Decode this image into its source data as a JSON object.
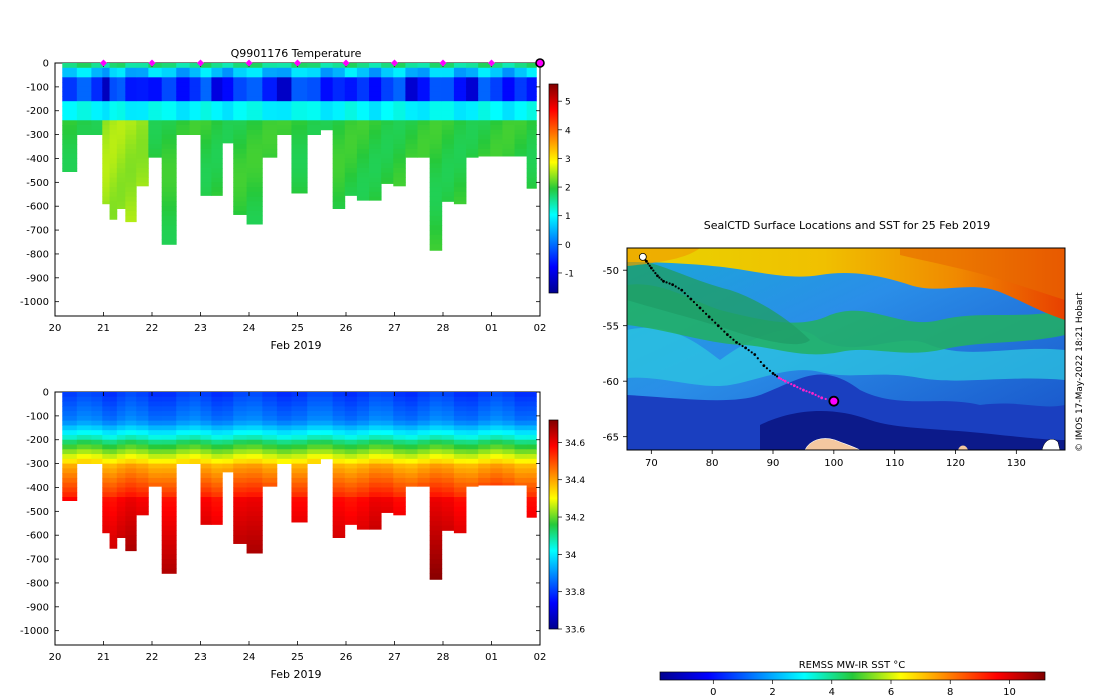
{
  "chart_data": [
    {
      "id": "temperature",
      "type": "heatmap",
      "title": "Q9901176  Temperature",
      "xlabel": "Feb 2019",
      "ylabel": "",
      "x_tick_labels": [
        "20",
        "21",
        "22",
        "23",
        "24",
        "25",
        "26",
        "27",
        "28",
        "01",
        "02"
      ],
      "xlim_days": [
        0,
        10
      ],
      "y_ticks": [
        0,
        -100,
        -200,
        -300,
        -400,
        -500,
        -600,
        -700,
        -800,
        -900,
        -1000
      ],
      "ylim": [
        -1060,
        0
      ],
      "colorbar": {
        "ticks": [
          5,
          4,
          3,
          2,
          1,
          0,
          -1
        ],
        "range": [
          -1.7,
          5.6
        ]
      },
      "profile_markers_days": [
        1,
        2,
        3,
        4,
        5,
        6,
        7,
        8,
        9
      ],
      "current_position_marker_day": 10,
      "profiles": [
        {
          "day": 0.3,
          "max_depth": 455
        },
        {
          "day": 0.6,
          "max_depth": 300
        },
        {
          "day": 0.9,
          "max_depth": 300
        },
        {
          "day": 1.05,
          "max_depth": 590
        },
        {
          "day": 1.2,
          "max_depth": 655
        },
        {
          "day": 1.35,
          "max_depth": 610
        },
        {
          "day": 1.55,
          "max_depth": 665
        },
        {
          "day": 1.8,
          "max_depth": 515
        },
        {
          "day": 2.05,
          "max_depth": 395
        },
        {
          "day": 2.35,
          "max_depth": 760
        },
        {
          "day": 2.65,
          "max_depth": 300
        },
        {
          "day": 2.9,
          "max_depth": 300
        },
        {
          "day": 3.1,
          "max_depth": 555
        },
        {
          "day": 3.35,
          "max_depth": 555
        },
        {
          "day": 3.55,
          "max_depth": 335
        },
        {
          "day": 3.8,
          "max_depth": 635
        },
        {
          "day": 4.1,
          "max_depth": 675
        },
        {
          "day": 4.45,
          "max_depth": 395
        },
        {
          "day": 4.7,
          "max_depth": 300
        },
        {
          "day": 5.05,
          "max_depth": 545
        },
        {
          "day": 5.35,
          "max_depth": 300
        },
        {
          "day": 5.6,
          "max_depth": 280
        },
        {
          "day": 5.85,
          "max_depth": 610
        },
        {
          "day": 6.1,
          "max_depth": 555
        },
        {
          "day": 6.35,
          "max_depth": 575
        },
        {
          "day": 6.6,
          "max_depth": 575
        },
        {
          "day": 6.85,
          "max_depth": 505
        },
        {
          "day": 7.1,
          "max_depth": 515
        },
        {
          "day": 7.35,
          "max_depth": 395
        },
        {
          "day": 7.6,
          "max_depth": 395
        },
        {
          "day": 7.85,
          "max_depth": 785
        },
        {
          "day": 8.1,
          "max_depth": 580
        },
        {
          "day": 8.35,
          "max_depth": 590
        },
        {
          "day": 8.6,
          "max_depth": 395
        },
        {
          "day": 8.85,
          "max_depth": 390
        },
        {
          "day": 9.1,
          "max_depth": 390
        },
        {
          "day": 9.35,
          "max_depth": 390
        },
        {
          "day": 9.6,
          "max_depth": 390
        },
        {
          "day": 9.85,
          "max_depth": 525
        }
      ]
    },
    {
      "id": "salinity",
      "type": "heatmap",
      "title": "",
      "xlabel": "Feb 2019",
      "ylabel": "",
      "x_tick_labels": [
        "20",
        "21",
        "22",
        "23",
        "24",
        "25",
        "26",
        "27",
        "28",
        "01",
        "02"
      ],
      "xlim_days": [
        0,
        10
      ],
      "y_ticks": [
        0,
        -100,
        -200,
        -300,
        -400,
        -500,
        -600,
        -700,
        -800,
        -900,
        -1000
      ],
      "ylim": [
        -1060,
        0
      ],
      "colorbar": {
        "ticks": [
          "34.6",
          "34.4",
          "34.2",
          "34",
          "33.8",
          "33.6"
        ],
        "range": [
          33.6,
          34.72
        ]
      }
    },
    {
      "id": "map",
      "type": "heatmap",
      "title": "SealCTD Surface Locations and SST for 25 Feb 2019",
      "x_tick_labels": [
        "70",
        "80",
        "90",
        "100",
        "110",
        "120",
        "130"
      ],
      "y_tick_labels": [
        "-50",
        "-55",
        "-60",
        "-65"
      ],
      "xlim": [
        66,
        138
      ],
      "ylim": [
        -66.2,
        -48
      ],
      "track": [
        [
          68.6,
          -48.8
        ],
        [
          69.2,
          -49.2
        ],
        [
          70.0,
          -49.8
        ],
        [
          71.0,
          -50.5
        ],
        [
          72.0,
          -51.0
        ],
        [
          73.5,
          -51.3
        ],
        [
          75.0,
          -51.8
        ],
        [
          76.5,
          -52.6
        ],
        [
          78.0,
          -53.4
        ],
        [
          79.5,
          -54.2
        ],
        [
          81.0,
          -55.0
        ],
        [
          82.5,
          -55.8
        ],
        [
          84.0,
          -56.5
        ],
        [
          85.5,
          -57.0
        ],
        [
          87.0,
          -57.6
        ],
        [
          88.5,
          -58.6
        ],
        [
          90.0,
          -59.3
        ],
        [
          91.0,
          -59.7
        ],
        [
          92.0,
          -60.0
        ],
        [
          93.5,
          -60.4
        ],
        [
          95.0,
          -60.8
        ],
        [
          96.5,
          -61.1
        ],
        [
          98.0,
          -61.5
        ],
        [
          100.0,
          -61.8
        ]
      ],
      "current_position": [
        100.0,
        -61.8
      ],
      "side_label": "© IMOS 17-May-2022 18:21 Hobart",
      "colorbar": {
        "title": "REMSS MW-IR SST °C",
        "ticks": [
          "0",
          "2",
          "4",
          "6",
          "8",
          "10"
        ],
        "range": [
          -1.8,
          11.2
        ]
      }
    }
  ]
}
